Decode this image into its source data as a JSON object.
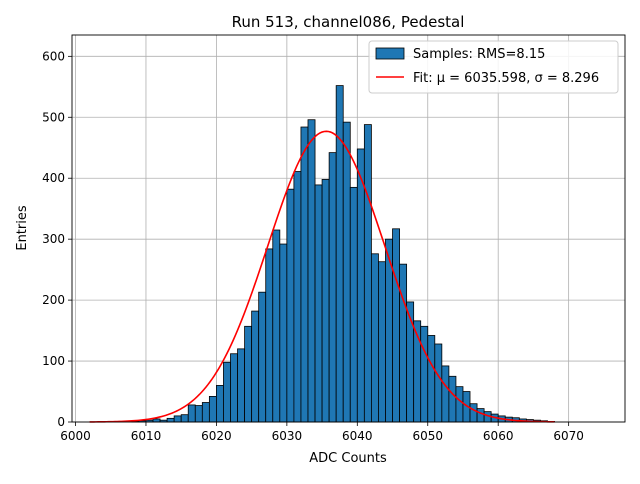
{
  "chart_data": {
    "type": "bar",
    "title": "Run 513, channel086, Pedestal",
    "xlabel": "ADC Counts",
    "ylabel": "Entries",
    "xlim": [
      5999.5,
      6078.0
    ],
    "ylim": [
      0,
      635
    ],
    "x_ticks": [
      6000,
      6010,
      6020,
      6030,
      6040,
      6050,
      6060,
      6070
    ],
    "y_ticks": [
      0,
      100,
      200,
      300,
      400,
      500,
      600
    ],
    "grid": true,
    "legend_position": "top-right",
    "bin_width": 1,
    "series": [
      {
        "name": "Samples: RMS=8.15",
        "kind": "histogram",
        "color": "#1f77b4",
        "edge_color": "#000000",
        "bins": [
          [
            6008,
            1
          ],
          [
            6009,
            2
          ],
          [
            6010,
            3
          ],
          [
            6011,
            5
          ],
          [
            6012,
            3
          ],
          [
            6013,
            6
          ],
          [
            6014,
            10
          ],
          [
            6015,
            12
          ],
          [
            6016,
            28
          ],
          [
            6017,
            27
          ],
          [
            6018,
            32
          ],
          [
            6019,
            42
          ],
          [
            6020,
            60
          ],
          [
            6021,
            98
          ],
          [
            6022,
            112
          ],
          [
            6023,
            120
          ],
          [
            6024,
            157
          ],
          [
            6025,
            182
          ],
          [
            6026,
            213
          ],
          [
            6027,
            284
          ],
          [
            6028,
            315
          ],
          [
            6029,
            292
          ],
          [
            6030,
            382
          ],
          [
            6031,
            411
          ],
          [
            6032,
            484
          ],
          [
            6033,
            496
          ],
          [
            6034,
            389
          ],
          [
            6035,
            398
          ],
          [
            6036,
            442
          ],
          [
            6037,
            552
          ],
          [
            6038,
            492
          ],
          [
            6039,
            385
          ],
          [
            6040,
            448
          ],
          [
            6041,
            488
          ],
          [
            6042,
            276
          ],
          [
            6043,
            263
          ],
          [
            6044,
            300
          ],
          [
            6045,
            317
          ],
          [
            6046,
            259
          ],
          [
            6047,
            197
          ],
          [
            6048,
            166
          ],
          [
            6049,
            157
          ],
          [
            6050,
            142
          ],
          [
            6051,
            128
          ],
          [
            6052,
            92
          ],
          [
            6053,
            75
          ],
          [
            6054,
            58
          ],
          [
            6055,
            50
          ],
          [
            6056,
            30
          ],
          [
            6057,
            22
          ],
          [
            6058,
            17
          ],
          [
            6059,
            13
          ],
          [
            6060,
            10
          ],
          [
            6061,
            8
          ],
          [
            6062,
            7
          ],
          [
            6063,
            5
          ],
          [
            6064,
            4
          ],
          [
            6065,
            3
          ],
          [
            6066,
            2
          ],
          [
            6067,
            1
          ]
        ]
      },
      {
        "name": "Fit: μ = 6035.598, σ = 8.296",
        "kind": "line",
        "color": "#ff0000",
        "mu": 6035.598,
        "sigma": 8.296,
        "amplitude": 477,
        "x_range": [
          6002,
          6068
        ]
      }
    ]
  }
}
